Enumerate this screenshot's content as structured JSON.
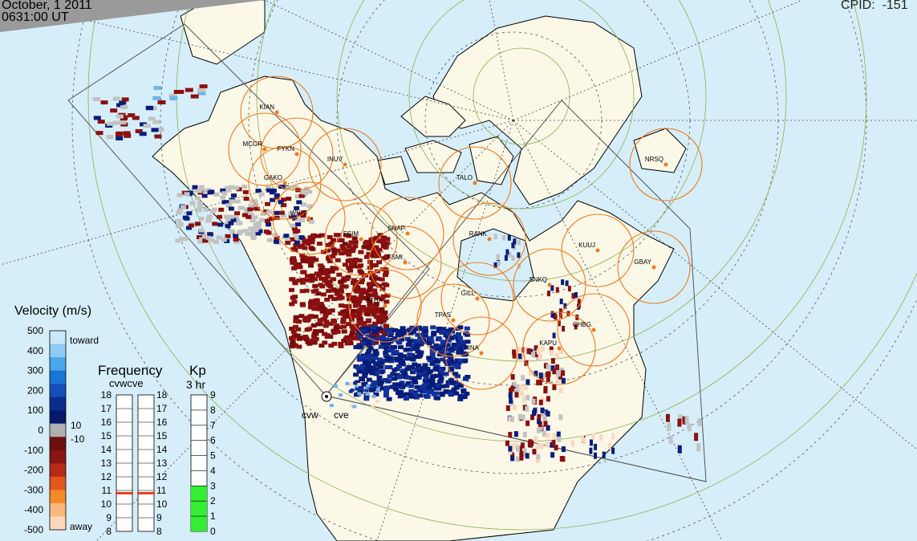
{
  "header": {
    "date": "October, 1 2011",
    "time": "0631:00 UT",
    "cpid": "CPID:  -151"
  },
  "stations": [
    {
      "code": "KIAN"
    },
    {
      "code": "MCGR"
    },
    {
      "code": "FYKN"
    },
    {
      "code": "INUV"
    },
    {
      "code": "GAKO"
    },
    {
      "code": "WHIT"
    },
    {
      "code": "TALO"
    },
    {
      "code": "NRSQ"
    },
    {
      "code": "FSIM"
    },
    {
      "code": "SNAP"
    },
    {
      "code": "FSMI"
    },
    {
      "code": "RANK"
    },
    {
      "code": "KUUJ"
    },
    {
      "code": "GBAY"
    },
    {
      "code": "SNKQ"
    },
    {
      "code": "GILL"
    },
    {
      "code": "ATHA"
    },
    {
      "code": "TPAS"
    },
    {
      "code": "PINA"
    },
    {
      "code": "CHBG"
    },
    {
      "code": "KAPU"
    }
  ],
  "radars": [
    "cvw",
    "cve"
  ],
  "velocity_scale": {
    "title": "Velocity (m/s)",
    "toward": "toward",
    "away": "away",
    "ticks": [
      "500",
      "400",
      "300",
      "200",
      "100",
      "0",
      "-100",
      "-200",
      "-300",
      "-400",
      "-500"
    ],
    "inner_ticks": [
      "10",
      "-10"
    ],
    "colors": [
      "#c9e7f9",
      "#8fcaf3",
      "#4aa7ea",
      "#1a76d3",
      "#1550b8",
      "#0b2e8d",
      "#06196b",
      "#b0b0b0",
      "#6e0f0f",
      "#8b1414",
      "#b52c1a",
      "#e3561d",
      "#f5892a",
      "#f9b77c",
      "#fcd9b9"
    ]
  },
  "frequency": {
    "title": "Frequency",
    "subtitle": "cvwcve",
    "ticks": [
      "18",
      "17",
      "16",
      "15",
      "14",
      "13",
      "12",
      "11",
      "10",
      "9",
      "8"
    ],
    "cvw_mhz": 10.8,
    "cve_mhz": 10.8,
    "marker_color": "#e0401e"
  },
  "kp": {
    "title": "Kp",
    "subtitle": "3 hr",
    "ticks": [
      "9",
      "8",
      "7",
      "6",
      "5",
      "4",
      "3",
      "2",
      "1",
      "0"
    ],
    "value": 3,
    "bar_color": "#33ee33"
  }
}
